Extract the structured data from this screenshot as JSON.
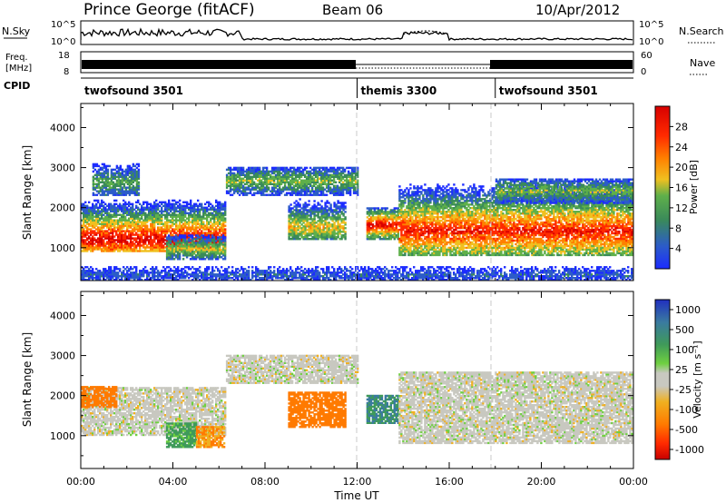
{
  "header": {
    "station": "Prince George (fitACF)",
    "beam": "Beam 06",
    "date": "10/Apr/2012"
  },
  "nsky_panel": {
    "left_label": "N.Sky",
    "left_ticks": [
      "10^5",
      "10^0"
    ],
    "right_ticks": [
      "10^5",
      "10^0"
    ],
    "right_label": "N.Search",
    "right_label_style": "dotted"
  },
  "freq_panel": {
    "left_label_line1": "Freq.",
    "left_label_line2": "[MHz]",
    "left_ticks": [
      "18",
      "8"
    ],
    "right_ticks": [
      "60",
      "0"
    ],
    "right_label": "Nave",
    "right_label_style": "dotted"
  },
  "cpid_panel": {
    "label": "CPID",
    "segments": [
      {
        "name": "twofsound 3501",
        "start_hour": 0,
        "end_hour": 12
      },
      {
        "name": "themis 3300",
        "start_hour": 12,
        "end_hour": 18
      },
      {
        "name": "twofsound 3501",
        "start_hour": 18,
        "end_hour": 24
      }
    ]
  },
  "power_panel": {
    "ylabel": "Slant Range [km]",
    "yticks": [
      "1000",
      "2000",
      "3000",
      "4000"
    ],
    "colorbar_label": "Power [dB]",
    "colorbar_ticks": [
      "4",
      "8",
      "12",
      "16",
      "20",
      "24",
      "28"
    ],
    "colors": [
      "#1c2cff",
      "#2c5cc8",
      "#3a8a5a",
      "#5fb04a",
      "#f0c020",
      "#ff8000",
      "#ff2a00",
      "#d80000"
    ]
  },
  "velocity_panel": {
    "ylabel": "Slant Range [km]",
    "yticks": [
      "1000",
      "2000",
      "3000",
      "4000"
    ],
    "colorbar_label": "Velocity [m s⁻¹]",
    "colorbar_ticks": [
      "1000",
      "500",
      "100",
      "25",
      "-25",
      "-100",
      "-500",
      "-1000"
    ],
    "colors": [
      "#2030c0",
      "#3a7aa0",
      "#3f9a5a",
      "#6fd040",
      "#c8c8c0",
      "#f0b020",
      "#ff7a00",
      "#ff2a00",
      "#c80000"
    ]
  },
  "xaxis": {
    "label": "Time UT",
    "ticks": [
      "00:00",
      "04:00",
      "08:00",
      "12:00",
      "16:00",
      "20:00",
      "00:00"
    ]
  },
  "chart_data": [
    {
      "type": "heatmap",
      "title": "Power",
      "xlabel": "Time UT",
      "ylabel": "Slant Range [km]",
      "xlim": [
        0,
        24
      ],
      "ylim": [
        180,
        4600
      ],
      "value_label": "Power [dB]",
      "value_range": [
        0,
        30
      ],
      "regions": [
        {
          "t0": 0.0,
          "t1": 6.3,
          "r0": 900,
          "r1": 2400,
          "peak_range": 1200,
          "peak_power": 28
        },
        {
          "t0": 0.5,
          "t1": 2.5,
          "r0": 2300,
          "r1": 3100,
          "peak_range": 2600,
          "peak_power": 12
        },
        {
          "t0": 3.7,
          "t1": 6.3,
          "r0": 700,
          "r1": 1300,
          "peak_range": 950,
          "peak_power": 16
        },
        {
          "t0": 6.3,
          "t1": 12.0,
          "r0": 2300,
          "r1": 3000,
          "peak_range": 2650,
          "peak_power": 14
        },
        {
          "t0": 9.0,
          "t1": 11.5,
          "r0": 1200,
          "r1": 2200,
          "peak_range": 1500,
          "peak_power": 18
        },
        {
          "t0": 12.4,
          "t1": 13.8,
          "r0": 1200,
          "r1": 2000,
          "peak_range": 1550,
          "peak_power": 28
        },
        {
          "t0": 13.8,
          "t1": 24.0,
          "r0": 800,
          "r1": 2600,
          "peak_range": 1400,
          "peak_power": 26
        },
        {
          "t0": 18.0,
          "t1": 24.0,
          "r0": 2100,
          "r1": 2700,
          "peak_range": 2400,
          "peak_power": 14
        },
        {
          "t0": 0.0,
          "t1": 24.0,
          "r0": 180,
          "r1": 500,
          "peak_range": 300,
          "peak_power": 6
        }
      ]
    },
    {
      "type": "heatmap",
      "title": "Velocity",
      "xlabel": "Time UT",
      "ylabel": "Slant Range [km]",
      "xlim": [
        0,
        24
      ],
      "ylim": [
        180,
        4600
      ],
      "value_label": "Velocity [m s⁻¹]",
      "value_range": [
        -1000,
        1000
      ],
      "regions": [
        {
          "t0": 0.0,
          "t1": 6.3,
          "r0": 1000,
          "r1": 2200,
          "velocity": 0
        },
        {
          "t0": 0.0,
          "t1": 1.5,
          "r0": 1700,
          "r1": 2200,
          "velocity": -250
        },
        {
          "t0": 3.7,
          "t1": 5.0,
          "r0": 700,
          "r1": 1300,
          "velocity": 120
        },
        {
          "t0": 5.0,
          "t1": 6.2,
          "r0": 700,
          "r1": 1200,
          "velocity": -100
        },
        {
          "t0": 6.3,
          "t1": 12.0,
          "r0": 2300,
          "r1": 3000,
          "velocity": 0
        },
        {
          "t0": 9.0,
          "t1": 11.5,
          "r0": 1200,
          "r1": 2100,
          "velocity": -200
        },
        {
          "t0": 12.4,
          "t1": 13.8,
          "r0": 1300,
          "r1": 2000,
          "velocity": 300
        },
        {
          "t0": 13.8,
          "t1": 24.0,
          "r0": 800,
          "r1": 2600,
          "velocity": 0
        }
      ]
    }
  ]
}
